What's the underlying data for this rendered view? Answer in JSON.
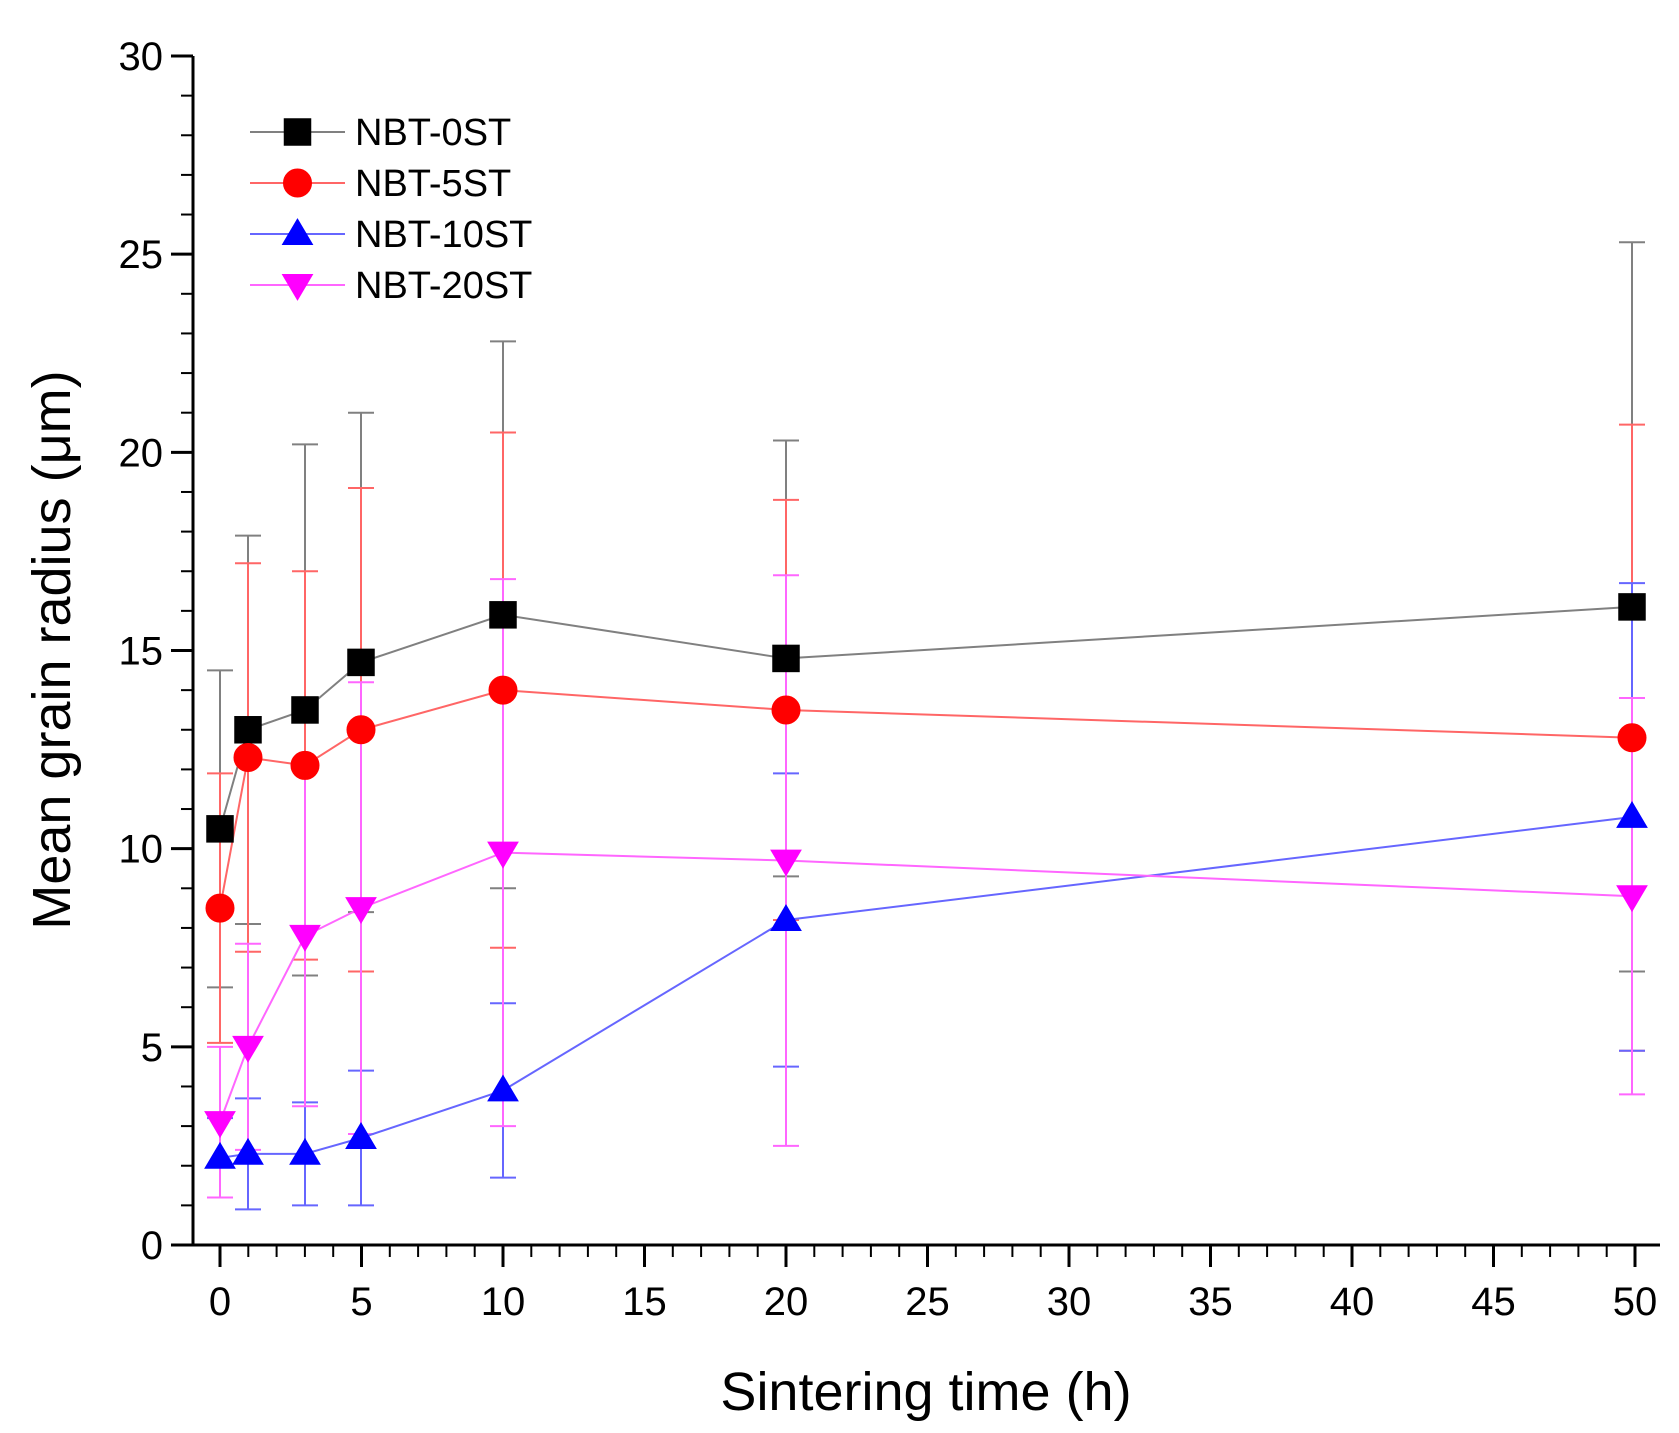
{
  "chart_data": {
    "type": "line",
    "title": "",
    "xlabel": "Sintering time (h)",
    "ylabel": "Mean grain radius (μm)",
    "x_axis_note": "axis broken/non-linear: tick labels 0,5,10,15,20,25,30,35,40,45,50 at even spacing; data at 20 and 50 h plotted at labelled ticks",
    "xticks": [
      "0",
      "5",
      "10",
      "15",
      "20",
      "25",
      "30",
      "35",
      "40",
      "45",
      "50"
    ],
    "yticks": [
      "0",
      "5",
      "10",
      "15",
      "20",
      "25",
      "30"
    ],
    "ylim": [
      0,
      30
    ],
    "grid": false,
    "legend_position": "top-left",
    "x": [
      0,
      1,
      3,
      5,
      10,
      20,
      50
    ],
    "series": [
      {
        "name": "NBT-0ST",
        "color": "#000000",
        "line_color": "#808080",
        "marker": "square",
        "values": [
          10.5,
          13.0,
          13.5,
          14.7,
          15.9,
          14.8,
          16.1
        ],
        "error": [
          4.0,
          4.9,
          6.7,
          6.3,
          6.9,
          5.5,
          9.2
        ]
      },
      {
        "name": "NBT-5ST",
        "color": "#ff0000",
        "line_color": "#ff6666",
        "marker": "circle",
        "values": [
          8.5,
          12.3,
          12.1,
          13.0,
          14.0,
          13.5,
          12.8
        ],
        "error": [
          3.4,
          4.9,
          4.9,
          6.1,
          6.5,
          5.3,
          7.9
        ]
      },
      {
        "name": "NBT-10ST",
        "color": "#0000ff",
        "line_color": "#6666ff",
        "marker": "triangle-up",
        "values": [
          2.2,
          2.3,
          2.3,
          2.7,
          3.9,
          8.2,
          10.8
        ],
        "error": [
          1.0,
          1.4,
          1.3,
          1.7,
          2.2,
          3.7,
          5.9
        ]
      },
      {
        "name": "NBT-20ST",
        "color": "#ff00ff",
        "line_color": "#ff66ff",
        "marker": "triangle-down",
        "values": [
          3.1,
          5.0,
          7.8,
          8.5,
          9.9,
          9.7,
          8.8
        ],
        "error": [
          1.9,
          2.6,
          4.3,
          5.7,
          6.9,
          7.2,
          5.0
        ]
      }
    ]
  }
}
